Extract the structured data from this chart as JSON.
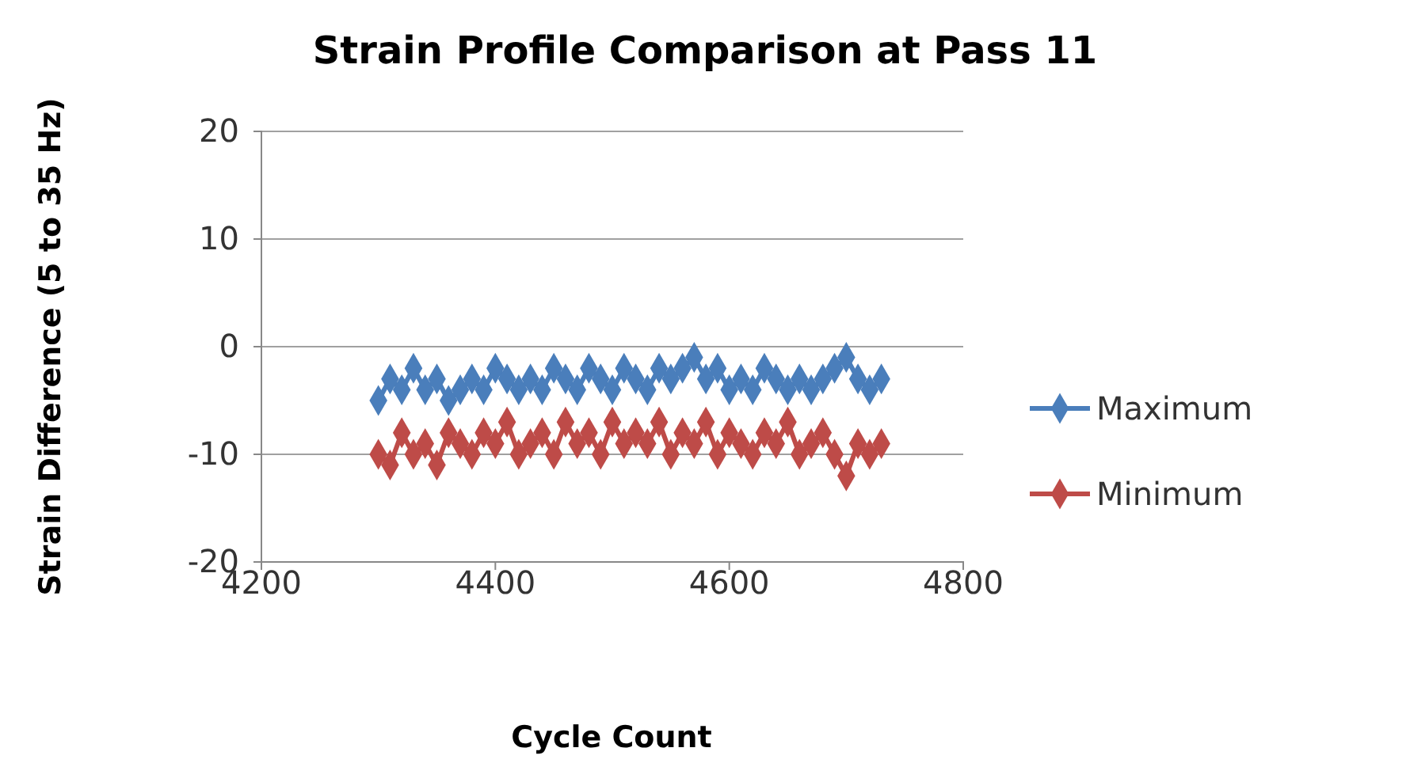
{
  "chart_data": {
    "type": "line",
    "title": "Strain Profile Comparison at Pass 11",
    "xlabel": "Cycle Count",
    "ylabel": "Strain Difference (5 to 35 Hz)",
    "x": [
      4300,
      4310,
      4320,
      4330,
      4340,
      4350,
      4360,
      4370,
      4380,
      4390,
      4400,
      4410,
      4420,
      4430,
      4440,
      4450,
      4460,
      4470,
      4480,
      4490,
      4500,
      4510,
      4520,
      4530,
      4540,
      4550,
      4560,
      4570,
      4580,
      4590,
      4600,
      4610,
      4620,
      4630,
      4640,
      4650,
      4660,
      4670,
      4680,
      4690,
      4700,
      4710,
      4720,
      4730
    ],
    "series": [
      {
        "name": "Maximum",
        "color": "#4a7ebb",
        "values": [
          -5,
          -3,
          -4,
          -2,
          -4,
          -3,
          -5,
          -4,
          -3,
          -4,
          -2,
          -3,
          -4,
          -3,
          -4,
          -2,
          -3,
          -4,
          -2,
          -3,
          -4,
          -2,
          -3,
          -4,
          -2,
          -3,
          -2,
          -1,
          -3,
          -2,
          -4,
          -3,
          -4,
          -2,
          -3,
          -4,
          -3,
          -4,
          -3,
          -2,
          -1,
          -3,
          -4,
          -3
        ]
      },
      {
        "name": "Minimum",
        "color": "#be4b48",
        "values": [
          -10,
          -11,
          -8,
          -10,
          -9,
          -11,
          -8,
          -9,
          -10,
          -8,
          -9,
          -7,
          -10,
          -9,
          -8,
          -10,
          -7,
          -9,
          -8,
          -10,
          -7,
          -9,
          -8,
          -9,
          -7,
          -10,
          -8,
          -9,
          -7,
          -10,
          -8,
          -9,
          -10,
          -8,
          -9,
          -7,
          -10,
          -9,
          -8,
          -10,
          -12,
          -9,
          -10,
          -9
        ]
      }
    ],
    "xlim": [
      4200,
      4800
    ],
    "xticks": [
      4200,
      4400,
      4600,
      4800
    ],
    "ylim": [
      -20,
      20
    ],
    "yticks": [
      -20,
      -10,
      0,
      10,
      20
    ],
    "grid": "y",
    "legend": "right",
    "marker": "diamond",
    "line_style": "solid"
  }
}
